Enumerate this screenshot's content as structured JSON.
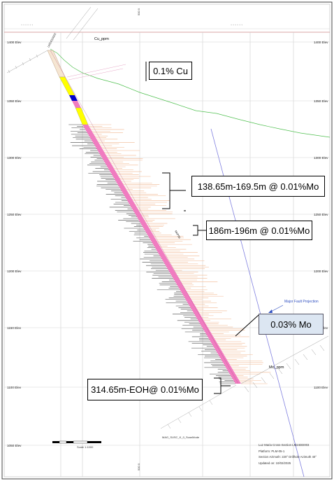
{
  "elevations": [
    "1400 Elev",
    "1350 Elev",
    "1300 Elev",
    "1250 Elev",
    "1200 Elev",
    "1150 Elev",
    "1100 Elev",
    "1050 Elev"
  ],
  "labels": {
    "cu_header": "Cu_ppm",
    "mo_header": "Mo_ppm",
    "hole_id": "LM24DD003",
    "fault": "Major Fault Projection",
    "mag_label": "MAG_SUSC_K_0_ScanMode",
    "mid_label": "MoPbb",
    "scale_label": "Scale 1:1000",
    "easting_top": "500 X",
    "easting_bottom": "500 X"
  },
  "callouts": {
    "cu_grade": "0.1% Cu",
    "interval_1": "138.65m-169.5m @ 0.01%Mo",
    "interval_2": "186m-196m @ 0.01%Mo",
    "mo_grade": "0.03% Mo",
    "interval_3": "314.65m-EOH@ 0.01%Mo"
  },
  "title_block": {
    "line1": "Luz Maria Cross-Section LM24DD003",
    "line2": "Platform: PLM-05-1",
    "line3": "Section Azimuth: 220° Drillhole Azimuth 40°",
    "line4": "Updated on: 10/02/2025"
  },
  "colors": {
    "pink": "#f07cc0",
    "yellow": "#ffff00",
    "blue": "#0000cc",
    "callout_blue": "#dce6f2",
    "cu_bars": "#f2b890",
    "mo_bars": "#444444",
    "fault_line": "#8080e0",
    "topo": "#50c050"
  }
}
